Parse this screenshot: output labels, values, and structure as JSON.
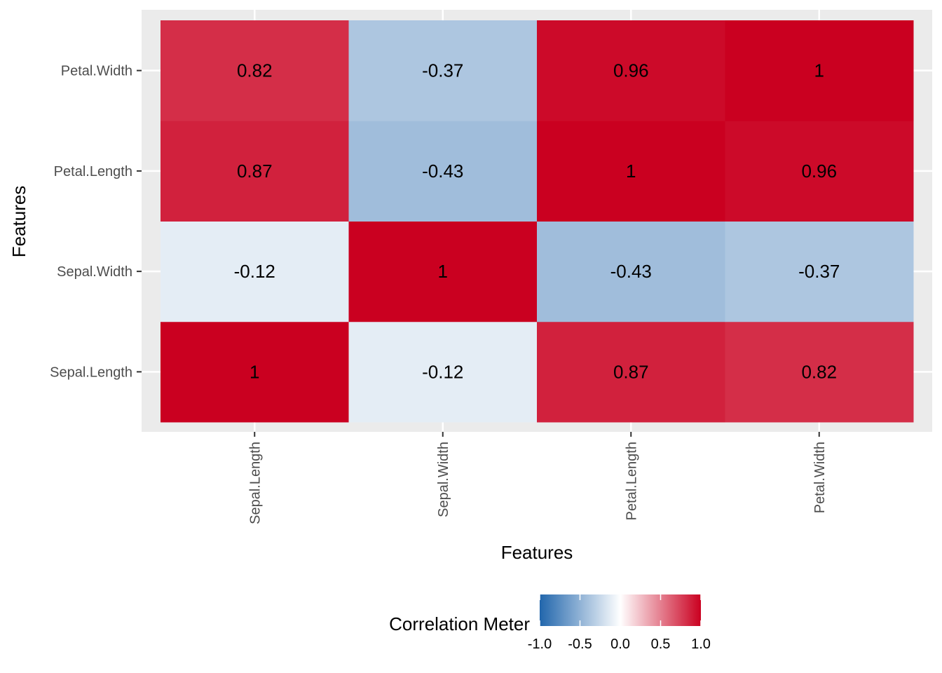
{
  "chart_data": {
    "type": "heatmap",
    "x_categories": [
      "Sepal.Length",
      "Sepal.Width",
      "Petal.Length",
      "Petal.Width"
    ],
    "y_categories": [
      "Sepal.Length",
      "Sepal.Width",
      "Petal.Length",
      "Petal.Width"
    ],
    "values": [
      [
        1,
        -0.12,
        0.87,
        0.82
      ],
      [
        -0.12,
        1,
        -0.43,
        -0.37
      ],
      [
        0.87,
        -0.43,
        1,
        0.96
      ],
      [
        0.82,
        -0.37,
        0.96,
        1
      ]
    ],
    "cell_labels": [
      [
        "1",
        "-0.12",
        "0.87",
        "0.82"
      ],
      [
        "-0.12",
        "1",
        "-0.43",
        "-0.37"
      ],
      [
        "0.87",
        "-0.43",
        "1",
        "0.96"
      ],
      [
        "0.82",
        "-0.37",
        "0.96",
        "1"
      ]
    ],
    "xlabel": "Features",
    "ylabel": "Features",
    "color_scale": {
      "min": -1,
      "max": 1,
      "low_color": "#2166ac",
      "mid_color": "#ffffff",
      "high_color": "#ca0020"
    },
    "legend": {
      "title": "Correlation Meter",
      "position": "bottom",
      "tick_labels": [
        "-1.0",
        "-0.5",
        "0.0",
        "0.5",
        "1.0"
      ],
      "tick_values": [
        -1,
        -0.5,
        0,
        0.5,
        1
      ]
    },
    "panel_background": "#ebebeb",
    "grid_color": "#ffffff",
    "grid": true
  }
}
